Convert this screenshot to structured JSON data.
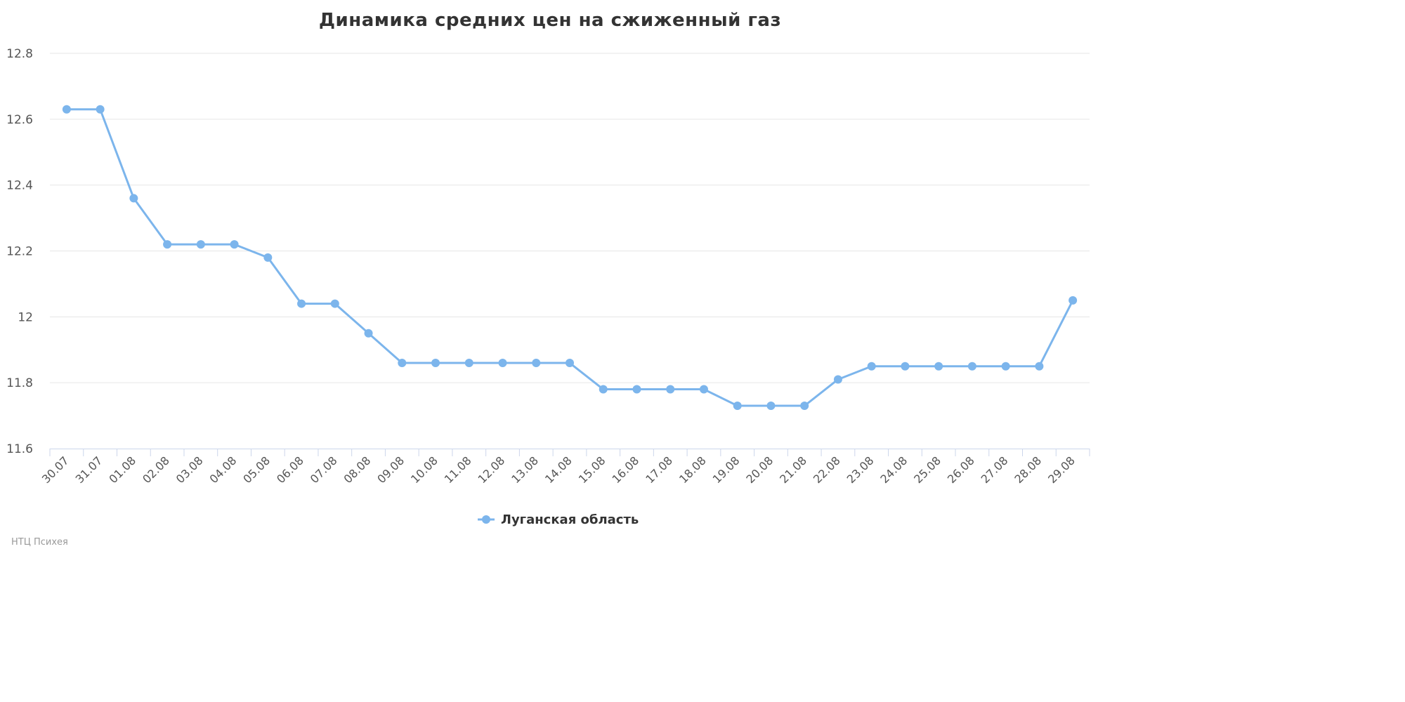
{
  "chart_data": {
    "type": "line",
    "title": "Динамика средних цен на сжиженный газ",
    "categories": [
      "30.07",
      "31.07",
      "01.08",
      "02.08",
      "03.08",
      "04.08",
      "05.08",
      "06.08",
      "07.08",
      "08.08",
      "09.08",
      "10.08",
      "11.08",
      "12.08",
      "13.08",
      "14.08",
      "15.08",
      "16.08",
      "17.08",
      "18.08",
      "19.08",
      "20.08",
      "21.08",
      "22.08",
      "23.08",
      "24.08",
      "25.08",
      "26.08",
      "27.08",
      "28.08",
      "29.08"
    ],
    "series": [
      {
        "name": "Луганская область",
        "color": "#7cb5ec",
        "values": [
          12.63,
          12.63,
          12.36,
          12.22,
          12.22,
          12.22,
          12.18,
          12.04,
          12.04,
          11.95,
          11.86,
          11.86,
          11.86,
          11.86,
          11.86,
          11.86,
          11.78,
          11.78,
          11.78,
          11.78,
          11.73,
          11.73,
          11.73,
          11.81,
          11.85,
          11.85,
          11.85,
          11.85,
          11.85,
          11.85,
          12.05
        ]
      }
    ],
    "yticks": [
      "11.6",
      "11.8",
      "12",
      "12.2",
      "12.4",
      "12.6",
      "12.8"
    ],
    "ylim": [
      11.6,
      12.8
    ],
    "grid": true,
    "legend": "bottom-center",
    "xlabel": "",
    "ylabel": ""
  },
  "credits": "НТЦ Психея"
}
